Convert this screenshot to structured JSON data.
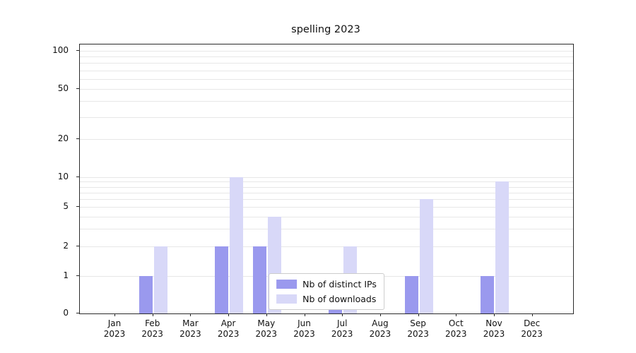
{
  "chart_data": {
    "type": "bar",
    "title": "spelling 2023",
    "categories": [
      "Jan 2023",
      "Feb 2023",
      "Mar 2023",
      "Apr 2023",
      "May 2023",
      "Jun 2023",
      "Jul 2023",
      "Aug 2023",
      "Sep 2023",
      "Oct 2023",
      "Nov 2023",
      "Dec 2023"
    ],
    "series": [
      {
        "name": "Nb of distinct IPs",
        "color": "#9a99ee",
        "values": [
          0,
          1,
          0,
          2,
          2,
          0,
          1,
          0,
          1,
          0,
          1,
          0
        ]
      },
      {
        "name": "Nb of downloads",
        "color": "#d8d8f8",
        "values": [
          0,
          2,
          0,
          10,
          4,
          0,
          2,
          0,
          6,
          0,
          9,
          0
        ]
      }
    ],
    "yscale": "symlog",
    "ylim": [
      0,
      100
    ],
    "yticks": [
      0,
      1,
      2,
      5,
      10,
      20,
      50,
      100
    ],
    "grid": true,
    "legend_position": "lower center"
  }
}
